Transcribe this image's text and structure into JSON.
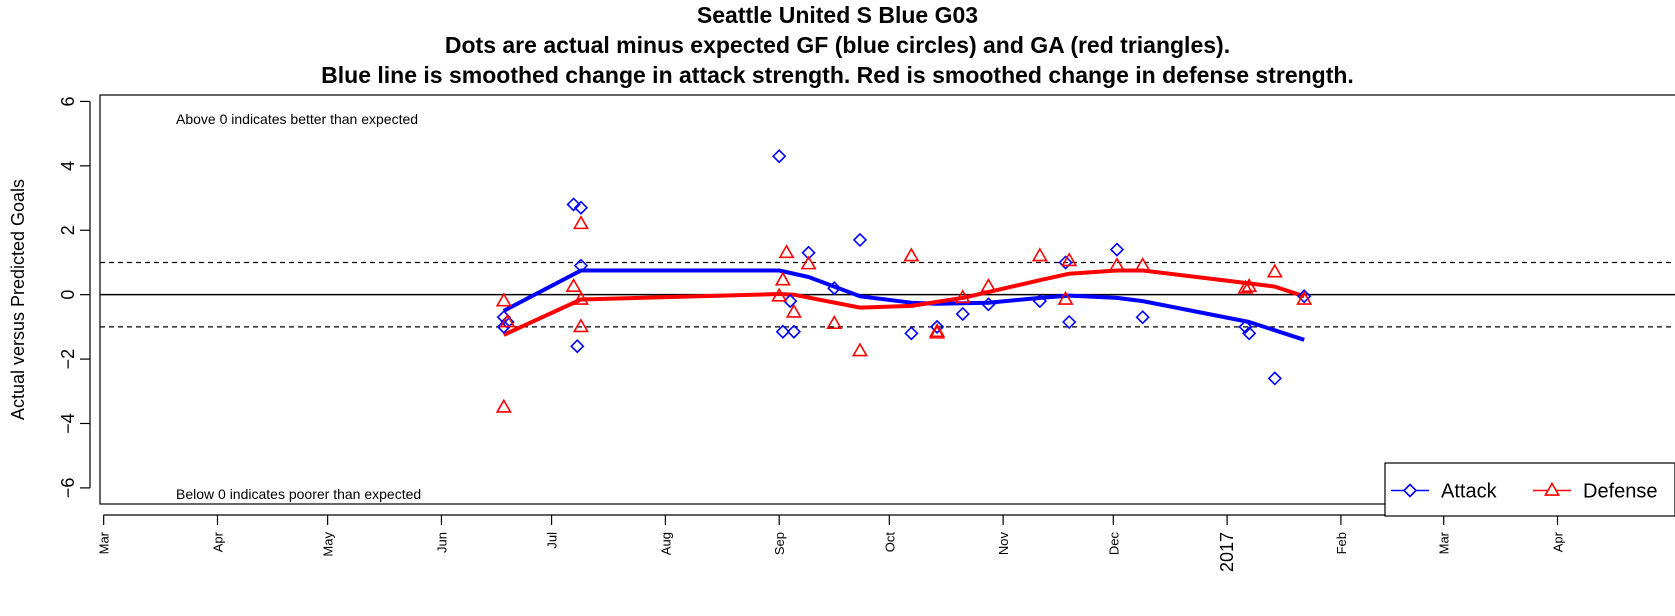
{
  "chart_data": {
    "type": "scatter",
    "title_lines": [
      "Seattle United S Blue G03",
      "Dots are actual minus expected GF (blue circles) and GA (red triangles).",
      "Blue line is smoothed change in attack strength. Red is smoothed change in defense strength."
    ],
    "ylabel": "Actual versus Predicted Goals",
    "ylim": [
      -6.5,
      6.2
    ],
    "y_ticks": [
      -6,
      -4,
      -2,
      0,
      2,
      4,
      6
    ],
    "y_tick_labels": [
      "−6",
      "−4",
      "−2",
      "0",
      "2",
      "4",
      "6"
    ],
    "x_ticks": [
      {
        "date": "2016-03-01",
        "label": "Mar"
      },
      {
        "date": "2016-04-01",
        "label": "Apr"
      },
      {
        "date": "2016-05-01",
        "label": "May"
      },
      {
        "date": "2016-06-01",
        "label": "Jun"
      },
      {
        "date": "2016-07-01",
        "label": "Jul"
      },
      {
        "date": "2016-08-01",
        "label": "Aug"
      },
      {
        "date": "2016-09-01",
        "label": "Sep"
      },
      {
        "date": "2016-10-01",
        "label": "Oct"
      },
      {
        "date": "2016-11-01",
        "label": "Nov"
      },
      {
        "date": "2016-12-01",
        "label": "Dec"
      },
      {
        "date": "2017-01-01",
        "label": "2017"
      },
      {
        "date": "2017-02-01",
        "label": "Feb"
      },
      {
        "date": "2017-03-01",
        "label": "Mar"
      },
      {
        "date": "2017-04-01",
        "label": "Apr"
      }
    ],
    "xlim": [
      "2016-02-29",
      "2017-05-03"
    ],
    "annotations": {
      "top": "Above 0 indicates better than expected",
      "bottom": "Below 0 indicates poorer than expected"
    },
    "reference_lines": {
      "solid": [
        0
      ],
      "dashed": [
        1,
        -1
      ]
    },
    "legend": {
      "position": "bottom-right",
      "entries": [
        "Attack",
        "Defense"
      ]
    },
    "colors": {
      "attack": "#0000ff",
      "defense": "#ff0000"
    },
    "attack_points": [
      {
        "x": "2016-06-18",
        "y": -0.7
      },
      {
        "x": "2016-06-18",
        "y": -1.0
      },
      {
        "x": "2016-06-19",
        "y": -0.85
      },
      {
        "x": "2016-07-07",
        "y": 2.8
      },
      {
        "x": "2016-07-09",
        "y": 2.7
      },
      {
        "x": "2016-07-08",
        "y": -1.6
      },
      {
        "x": "2016-07-09",
        "y": 0.9
      },
      {
        "x": "2016-09-01",
        "y": 4.3
      },
      {
        "x": "2016-09-02",
        "y": -1.15
      },
      {
        "x": "2016-09-04",
        "y": -0.2
      },
      {
        "x": "2016-09-05",
        "y": -1.15
      },
      {
        "x": "2016-09-09",
        "y": 1.3
      },
      {
        "x": "2016-09-16",
        "y": 0.2
      },
      {
        "x": "2016-09-23",
        "y": 1.7
      },
      {
        "x": "2016-10-07",
        "y": -1.2
      },
      {
        "x": "2016-10-14",
        "y": -1.0
      },
      {
        "x": "2016-10-21",
        "y": -0.6
      },
      {
        "x": "2016-10-28",
        "y": -0.3
      },
      {
        "x": "2016-11-11",
        "y": -0.2
      },
      {
        "x": "2016-11-18",
        "y": 1.0
      },
      {
        "x": "2016-11-19",
        "y": -0.85
      },
      {
        "x": "2016-12-02",
        "y": 1.4
      },
      {
        "x": "2016-12-09",
        "y": -0.7
      },
      {
        "x": "2017-01-06",
        "y": -1.0
      },
      {
        "x": "2017-01-07",
        "y": -1.2
      },
      {
        "x": "2017-01-14",
        "y": -2.6
      },
      {
        "x": "2017-01-22",
        "y": -0.05
      }
    ],
    "defense_points": [
      {
        "x": "2016-06-18",
        "y": -0.2
      },
      {
        "x": "2016-06-18",
        "y": -3.5
      },
      {
        "x": "2016-06-19",
        "y": -0.85
      },
      {
        "x": "2016-07-07",
        "y": 0.25
      },
      {
        "x": "2016-07-09",
        "y": 2.2
      },
      {
        "x": "2016-07-09",
        "y": -0.15
      },
      {
        "x": "2016-07-09",
        "y": -1.0
      },
      {
        "x": "2016-09-01",
        "y": -0.05
      },
      {
        "x": "2016-09-02",
        "y": 0.45
      },
      {
        "x": "2016-09-03",
        "y": 1.3
      },
      {
        "x": "2016-09-05",
        "y": -0.55
      },
      {
        "x": "2016-09-09",
        "y": 0.95
      },
      {
        "x": "2016-09-16",
        "y": -0.9
      },
      {
        "x": "2016-09-23",
        "y": -1.75
      },
      {
        "x": "2016-10-07",
        "y": 1.2
      },
      {
        "x": "2016-10-14",
        "y": -1.15
      },
      {
        "x": "2016-10-14",
        "y": -1.2
      },
      {
        "x": "2016-10-21",
        "y": -0.1
      },
      {
        "x": "2016-10-28",
        "y": 0.25
      },
      {
        "x": "2016-11-11",
        "y": 1.2
      },
      {
        "x": "2016-11-18",
        "y": -0.15
      },
      {
        "x": "2016-11-19",
        "y": 1.05
      },
      {
        "x": "2016-12-02",
        "y": 0.9
      },
      {
        "x": "2016-12-09",
        "y": 0.9
      },
      {
        "x": "2017-01-06",
        "y": 0.2
      },
      {
        "x": "2017-01-07",
        "y": 0.25
      },
      {
        "x": "2017-01-14",
        "y": 0.7
      },
      {
        "x": "2017-01-22",
        "y": -0.15
      }
    ],
    "attack_line": [
      {
        "x": "2016-06-18",
        "y": -0.5
      },
      {
        "x": "2016-07-09",
        "y": 0.75
      },
      {
        "x": "2016-09-01",
        "y": 0.75
      },
      {
        "x": "2016-09-09",
        "y": 0.55
      },
      {
        "x": "2016-09-16",
        "y": 0.25
      },
      {
        "x": "2016-09-23",
        "y": -0.05
      },
      {
        "x": "2016-10-07",
        "y": -0.25
      },
      {
        "x": "2016-10-14",
        "y": -0.28
      },
      {
        "x": "2016-10-28",
        "y": -0.25
      },
      {
        "x": "2016-11-11",
        "y": -0.1
      },
      {
        "x": "2016-11-19",
        "y": -0.03
      },
      {
        "x": "2016-12-02",
        "y": -0.1
      },
      {
        "x": "2016-12-09",
        "y": -0.2
      },
      {
        "x": "2017-01-07",
        "y": -0.85
      },
      {
        "x": "2017-01-22",
        "y": -1.4
      }
    ],
    "defense_line": [
      {
        "x": "2016-06-18",
        "y": -1.25
      },
      {
        "x": "2016-07-09",
        "y": -0.15
      },
      {
        "x": "2016-09-01",
        "y": 0.02
      },
      {
        "x": "2016-09-05",
        "y": 0.0
      },
      {
        "x": "2016-09-23",
        "y": -0.4
      },
      {
        "x": "2016-10-07",
        "y": -0.35
      },
      {
        "x": "2016-10-21",
        "y": -0.1
      },
      {
        "x": "2016-11-11",
        "y": 0.45
      },
      {
        "x": "2016-11-19",
        "y": 0.65
      },
      {
        "x": "2016-12-02",
        "y": 0.75
      },
      {
        "x": "2016-12-09",
        "y": 0.75
      },
      {
        "x": "2017-01-07",
        "y": 0.35
      },
      {
        "x": "2017-01-14",
        "y": 0.25
      },
      {
        "x": "2017-01-22",
        "y": -0.05
      }
    ]
  }
}
